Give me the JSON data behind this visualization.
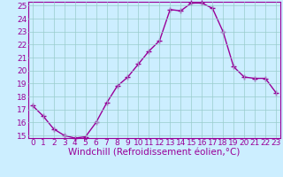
{
  "x": [
    0,
    1,
    2,
    3,
    4,
    5,
    6,
    7,
    8,
    9,
    10,
    11,
    12,
    13,
    14,
    15,
    16,
    17,
    18,
    19,
    20,
    21,
    22,
    23
  ],
  "y": [
    17.3,
    16.5,
    15.5,
    15.0,
    14.8,
    14.9,
    16.0,
    17.5,
    18.8,
    19.5,
    20.5,
    21.5,
    22.3,
    24.7,
    24.6,
    25.2,
    25.2,
    24.8,
    23.0,
    20.3,
    19.5,
    19.4,
    19.4,
    18.3
  ],
  "line_color": "#990099",
  "marker": "+",
  "marker_size": 4,
  "marker_linewidth": 1.0,
  "bg_color": "#cceeff",
  "grid_color": "#99cccc",
  "xlabel": "Windchill (Refroidissement éolien,°C)",
  "xlabel_color": "#990099",
  "xlabel_fontsize": 7.5,
  "ylim_min": 15,
  "ylim_max": 25,
  "xlim_min": 0,
  "xlim_max": 23,
  "yticks": [
    15,
    16,
    17,
    18,
    19,
    20,
    21,
    22,
    23,
    24,
    25
  ],
  "xticks": [
    0,
    1,
    2,
    3,
    4,
    5,
    6,
    7,
    8,
    9,
    10,
    11,
    12,
    13,
    14,
    15,
    16,
    17,
    18,
    19,
    20,
    21,
    22,
    23
  ],
  "tick_label_fontsize": 6.5,
  "tick_color": "#990099",
  "spine_color": "#990099",
  "linewidth": 1.0
}
